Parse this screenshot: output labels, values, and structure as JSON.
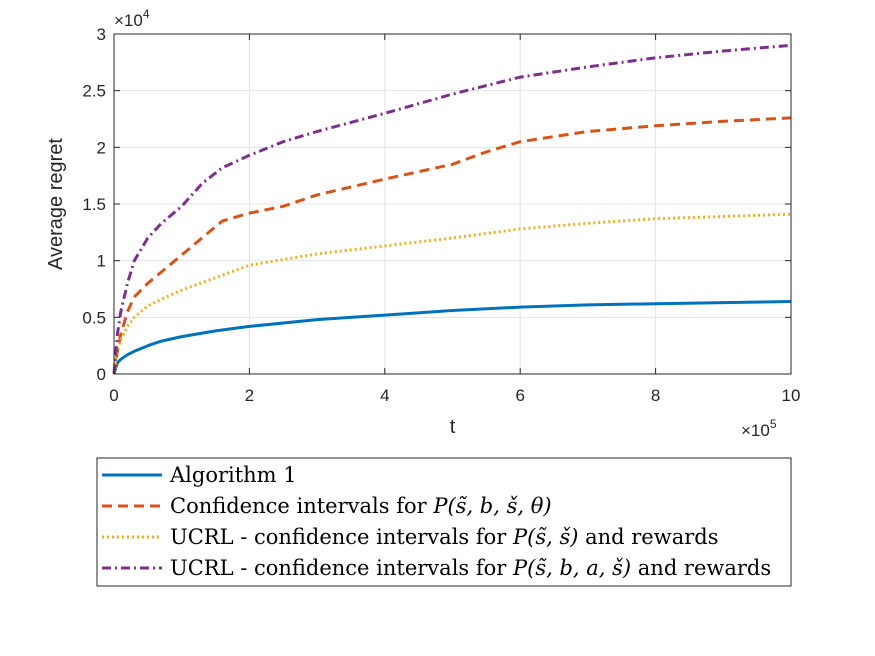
{
  "chart_data": {
    "type": "line",
    "title": "",
    "xlabel": "t",
    "ylabel": "Average regret",
    "x_exponent": {
      "base": "×10",
      "power": "5"
    },
    "y_exponent": {
      "base": "×10",
      "power": "4"
    },
    "xlim": [
      0,
      10
    ],
    "ylim": [
      0,
      3
    ],
    "x_ticks": [
      0,
      2,
      4,
      6,
      8,
      10
    ],
    "x_tick_labels": [
      "0",
      "2",
      "4",
      "6",
      "8",
      "10"
    ],
    "y_ticks": [
      0,
      0.5,
      1,
      1.5,
      2,
      2.5,
      3
    ],
    "y_tick_labels": [
      "0",
      "0.5",
      "1",
      "1.5",
      "2",
      "2.5",
      "3"
    ],
    "grid": true,
    "legend_position": "bottom-outside",
    "series": [
      {
        "name": "Algorithm 1",
        "legend_plain": "Algorithm 1",
        "color": "#0072BD",
        "style": "solid",
        "x": [
          0,
          0.05,
          0.1,
          0.2,
          0.3,
          0.5,
          0.7,
          1,
          1.5,
          2,
          3,
          4,
          5,
          6,
          7,
          8,
          9,
          10
        ],
        "values": [
          0,
          0.1,
          0.13,
          0.17,
          0.2,
          0.25,
          0.29,
          0.33,
          0.38,
          0.42,
          0.48,
          0.52,
          0.56,
          0.59,
          0.61,
          0.62,
          0.63,
          0.64
        ]
      },
      {
        "name": "Confidence intervals for P(s̃,b,š,θ)",
        "legend_prefix": "Confidence intervals for ",
        "legend_math": "P(s̃, b, š, θ)",
        "legend_suffix": "",
        "color": "#D95319",
        "style": "dashed",
        "x": [
          0,
          0.05,
          0.1,
          0.2,
          0.3,
          0.5,
          0.7,
          1,
          1.3,
          1.6,
          2,
          2.5,
          3,
          4,
          5,
          5.5,
          6,
          7,
          8,
          9,
          10
        ],
        "values": [
          0,
          0.2,
          0.35,
          0.55,
          0.68,
          0.8,
          0.9,
          1.05,
          1.2,
          1.35,
          1.42,
          1.48,
          1.58,
          1.72,
          1.85,
          1.96,
          2.05,
          2.14,
          2.19,
          2.23,
          2.26
        ]
      },
      {
        "name": "UCRL - confidence intervals for P(s̃,š) and rewards",
        "legend_prefix": "UCRL - confidence intervals for ",
        "legend_math": "P(s̃, š)",
        "legend_suffix": " and rewards",
        "color": "#EDB120",
        "style": "dotted",
        "x": [
          0,
          0.05,
          0.1,
          0.2,
          0.3,
          0.5,
          0.7,
          1,
          1.5,
          2,
          3,
          4,
          5,
          6,
          7,
          8,
          9,
          10
        ],
        "values": [
          0,
          0.2,
          0.3,
          0.42,
          0.5,
          0.6,
          0.66,
          0.74,
          0.85,
          0.96,
          1.06,
          1.13,
          1.2,
          1.28,
          1.33,
          1.37,
          1.39,
          1.41
        ]
      },
      {
        "name": "UCRL - confidence intervals for P(s̃,b,a,š) and rewards",
        "legend_prefix": "UCRL - confidence intervals for ",
        "legend_math": "P(s̃, b, a, š)",
        "legend_suffix": " and rewards",
        "color": "#7E2F8E",
        "style": "dashdot",
        "x": [
          0,
          0.05,
          0.1,
          0.2,
          0.3,
          0.5,
          0.7,
          1,
          1.3,
          1.6,
          2,
          2.5,
          3,
          4,
          5,
          6,
          7,
          8,
          9,
          10
        ],
        "values": [
          0,
          0.35,
          0.55,
          0.8,
          1.0,
          1.2,
          1.33,
          1.48,
          1.68,
          1.82,
          1.93,
          2.05,
          2.14,
          2.3,
          2.47,
          2.62,
          2.71,
          2.79,
          2.85,
          2.9
        ]
      }
    ]
  }
}
